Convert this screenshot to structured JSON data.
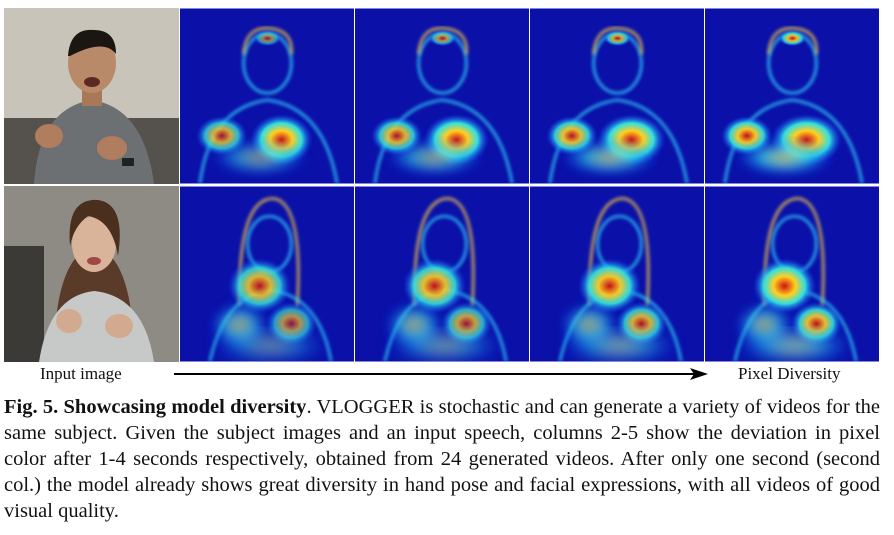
{
  "figure": {
    "left_label": "Input image",
    "right_label": "Pixel Diversity"
  },
  "caption": {
    "label": "Fig. 5. Showcasing model diversity",
    "text": ". VLOGGER is stochastic and can generate a variety of videos for the same subject. Given the subject images and an input speech, columns 2-5 show the deviation in pixel color after 1-4 seconds respectively, obtained from 24 generated videos. After only one second (second col.) the model already shows great diversity in hand pose and facial expressions, with all videos of good visual quality."
  }
}
